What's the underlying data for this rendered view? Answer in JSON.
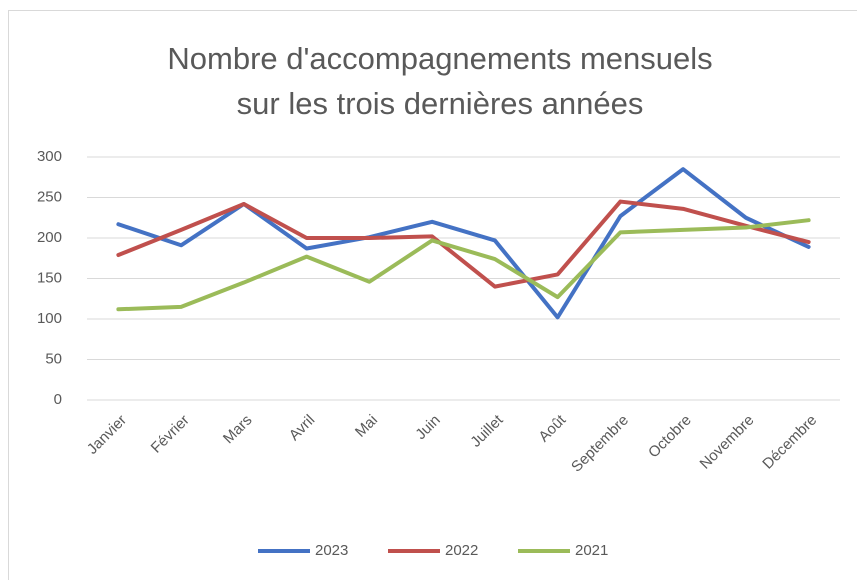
{
  "chart_data": {
    "type": "line",
    "title": "Nombre d'accompagnements mensuels sur les trois dernières années",
    "categories": [
      "Janvier",
      "Février",
      "Mars",
      "Avril",
      "Mai",
      "Juin",
      "Juillet",
      "Août",
      "Septembre",
      "Octobre",
      "Novembre",
      "Décembre"
    ],
    "series": [
      {
        "name": "2023",
        "color": "#4472c4",
        "values": [
          217,
          191,
          242,
          187,
          201,
          220,
          197,
          102,
          227,
          285,
          225,
          189
        ]
      },
      {
        "name": "2022",
        "color": "#c0504d",
        "values": [
          179,
          210,
          242,
          200,
          200,
          202,
          140,
          155,
          245,
          236,
          215,
          195
        ]
      },
      {
        "name": "2021",
        "color": "#9bbb59",
        "values": [
          112,
          115,
          145,
          177,
          146,
          197,
          174,
          127,
          207,
          210,
          213,
          222
        ]
      }
    ],
    "ylim": [
      0,
      300
    ],
    "yticks": [
      0,
      50,
      100,
      150,
      200,
      250,
      300
    ],
    "grid": true,
    "legend": "bottom"
  }
}
